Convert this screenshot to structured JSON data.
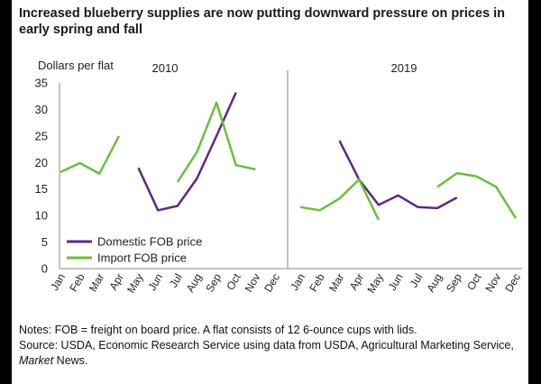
{
  "title": "Increased blueberry supplies are now putting downward pressure on prices in early spring and fall",
  "notes": {
    "line1": "Notes: FOB = freight on board price. A flat consists of 12 6-ounce cups with lids.",
    "source_prefix": "Source: USDA, Economic Research Service using data from USDA, Agricultural Marketing Service, ",
    "source_italic": "Market",
    "source_suffix": " News."
  },
  "colors": {
    "domestic": "#5b2a86",
    "import": "#6abf3c",
    "axis": "#888888",
    "text": "#222222"
  },
  "chart_data": [
    {
      "type": "line",
      "panel_label": "2010",
      "ylabel": "Dollars per flat",
      "ylim": [
        0,
        35
      ],
      "yticks": [
        0,
        5,
        10,
        15,
        20,
        25,
        30,
        35
      ],
      "categories": [
        "Jan",
        "Feb",
        "Mar",
        "Apr",
        "May",
        "Jun",
        "Jul",
        "Aug",
        "Sep",
        "Oct",
        "Nov",
        "Dec"
      ],
      "series": [
        {
          "name": "Domestic FOB price",
          "color_key": "domestic",
          "values": [
            null,
            null,
            null,
            null,
            19,
            11,
            11.8,
            17,
            25,
            33.2,
            null,
            null
          ]
        },
        {
          "name": "Import FOB price",
          "color_key": "import",
          "values": [
            18.2,
            19.9,
            17.9,
            25,
            null,
            null,
            16.3,
            22,
            31.3,
            19.5,
            18.7,
            null
          ]
        }
      ],
      "legend": "lower-left"
    },
    {
      "type": "line",
      "panel_label": "2019",
      "ylim": [
        0,
        35
      ],
      "categories": [
        "Jan",
        "Feb",
        "Mar",
        "Apr",
        "May",
        "Jun",
        "Jul",
        "Aug",
        "Sep",
        "Oct",
        "Nov",
        "Dec"
      ],
      "series": [
        {
          "name": "Domestic FOB price",
          "color_key": "domestic",
          "values": [
            null,
            null,
            24.1,
            16.8,
            12,
            13.8,
            11.6,
            11.4,
            13.4,
            null,
            null,
            null
          ]
        },
        {
          "name": "Import FOB price",
          "color_key": "import",
          "values": [
            11.6,
            11,
            13.2,
            16.8,
            9.2,
            null,
            null,
            15.4,
            18,
            17.4,
            15.4,
            9.5
          ]
        }
      ]
    }
  ]
}
